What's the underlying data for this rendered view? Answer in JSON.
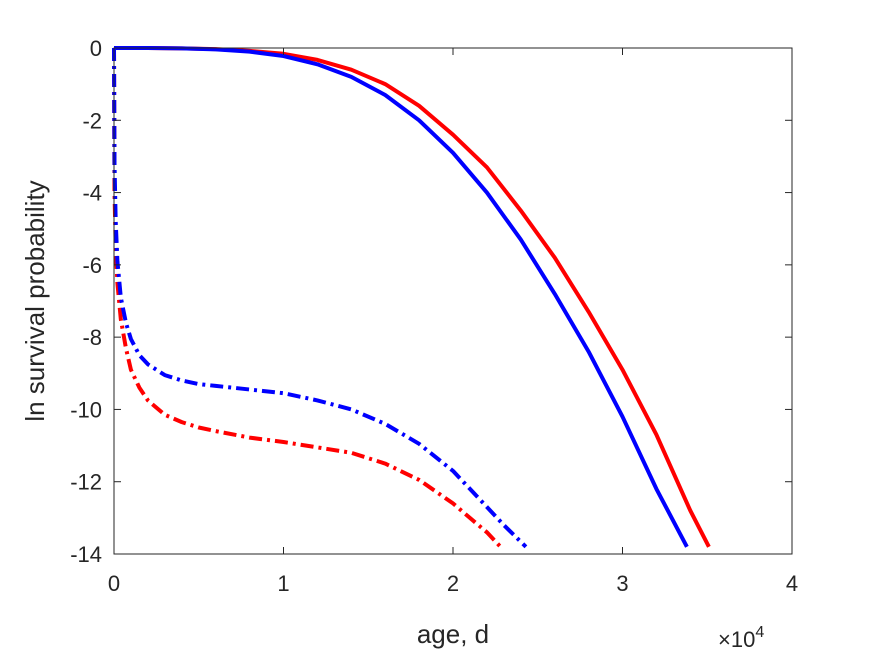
{
  "chart_data": {
    "type": "line",
    "xlabel": "age, d",
    "ylabel": "ln survival probability",
    "x_exponent_label": "×10",
    "x_exponent_power": "4",
    "xlim": [
      0,
      40000
    ],
    "ylim": [
      -14,
      0
    ],
    "x_ticks": [
      0,
      10000,
      20000,
      30000,
      40000
    ],
    "x_tick_labels": [
      "0",
      "1",
      "2",
      "3",
      "4"
    ],
    "y_ticks": [
      0,
      -2,
      -4,
      -6,
      -8,
      -10,
      -12,
      -14
    ],
    "y_tick_labels": [
      "0",
      "-2",
      "-4",
      "-6",
      "-8",
      "-10",
      "-12",
      "-14"
    ],
    "grid": false,
    "legend": "none",
    "series": [
      {
        "color": "#ff0000",
        "style": "solid",
        "x": [
          0,
          2000,
          4000,
          6000,
          8000,
          10000,
          12000,
          14000,
          16000,
          18000,
          20000,
          22000,
          24000,
          26000,
          28000,
          30000,
          32000,
          34000,
          35100
        ],
        "y": [
          0,
          0,
          -0.01,
          -0.03,
          -0.08,
          -0.16,
          -0.33,
          -0.6,
          -1.0,
          -1.6,
          -2.4,
          -3.3,
          -4.5,
          -5.8,
          -7.3,
          -8.9,
          -10.7,
          -12.8,
          -13.8
        ]
      },
      {
        "color": "#0000ff",
        "style": "solid",
        "x": [
          0,
          2000,
          4000,
          6000,
          8000,
          10000,
          12000,
          14000,
          16000,
          18000,
          20000,
          22000,
          24000,
          26000,
          28000,
          30000,
          32000,
          33800
        ],
        "y": [
          0,
          0,
          -0.01,
          -0.04,
          -0.1,
          -0.22,
          -0.45,
          -0.8,
          -1.3,
          -2.0,
          -2.9,
          -4.0,
          -5.3,
          -6.8,
          -8.4,
          -10.2,
          -12.2,
          -13.8
        ]
      },
      {
        "color": "#ff0000",
        "style": "dashdot",
        "x": [
          0,
          30,
          100,
          200,
          400,
          700,
          1000,
          1500,
          2000,
          3000,
          4000,
          5000,
          6000,
          8000,
          10000,
          12000,
          14000,
          16000,
          18000,
          20000,
          21000,
          22000,
          22800
        ],
        "y": [
          0,
          -4.0,
          -5.5,
          -6.5,
          -7.5,
          -8.3,
          -8.9,
          -9.4,
          -9.75,
          -10.15,
          -10.35,
          -10.5,
          -10.6,
          -10.78,
          -10.9,
          -11.05,
          -11.2,
          -11.5,
          -11.95,
          -12.6,
          -13.0,
          -13.4,
          -13.8
        ]
      },
      {
        "color": "#0000ff",
        "style": "dashdot",
        "x": [
          0,
          30,
          100,
          200,
          400,
          700,
          1000,
          1500,
          2000,
          3000,
          4000,
          5000,
          6000,
          8000,
          10000,
          12000,
          14000,
          16000,
          18000,
          20000,
          22000,
          23000,
          24300
        ],
        "y": [
          0,
          -3.2,
          -4.8,
          -5.9,
          -6.9,
          -7.6,
          -8.05,
          -8.5,
          -8.75,
          -9.05,
          -9.2,
          -9.3,
          -9.35,
          -9.45,
          -9.55,
          -9.75,
          -10.0,
          -10.4,
          -10.95,
          -11.7,
          -12.7,
          -13.2,
          -13.8
        ]
      }
    ]
  }
}
